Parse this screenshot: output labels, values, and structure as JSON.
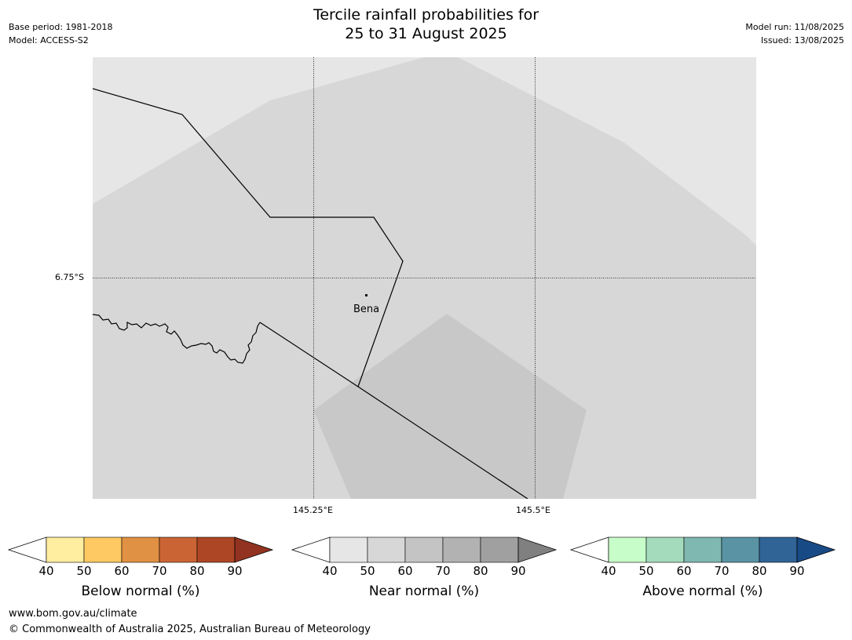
{
  "header": {
    "title_line1": "Tercile rainfall probabilities for",
    "title_line2": "25 to 31 August 2025",
    "base_period": "Base period: 1981-2018",
    "model": "Model: ACCESS-S2",
    "model_run": "Model run: 11/08/2025",
    "issued": "Issued: 13/08/2025"
  },
  "map": {
    "lat_grid_label": "6.75°S",
    "lon_grid_labels": [
      "145.25°E",
      "145.5°E"
    ],
    "place": "Bena",
    "colors": {
      "border": "#000000",
      "light": "#e6e6e6",
      "mid": "#d7d7d7",
      "dark": "#c8c8c8"
    }
  },
  "legends": {
    "below": {
      "label": "Below normal (%)",
      "ticks": [
        "40",
        "50",
        "60",
        "70",
        "80",
        "90"
      ],
      "colors": [
        "#ffffff",
        "#ffeda0",
        "#fec962",
        "#e19143",
        "#cb6434",
        "#ad4624",
        "#913320"
      ]
    },
    "near": {
      "label": "Near normal (%)",
      "ticks": [
        "40",
        "50",
        "60",
        "70",
        "80",
        "90"
      ],
      "colors": [
        "#ffffff",
        "#e6e6e6",
        "#d7d7d7",
        "#c4c4c4",
        "#b2b2b2",
        "#a0a0a0",
        "#808080"
      ]
    },
    "above": {
      "label": "Above normal (%)",
      "ticks": [
        "40",
        "50",
        "60",
        "70",
        "80",
        "90"
      ],
      "colors": [
        "#ffffff",
        "#c7fdc9",
        "#a4dbbd",
        "#7fb7b1",
        "#5a94a4",
        "#306396",
        "#184a86"
      ]
    }
  },
  "footer": {
    "url": "www.bom.gov.au/climate",
    "copyright": "© Commonwealth of Australia 2025, Australian Bureau of Meteorology"
  }
}
